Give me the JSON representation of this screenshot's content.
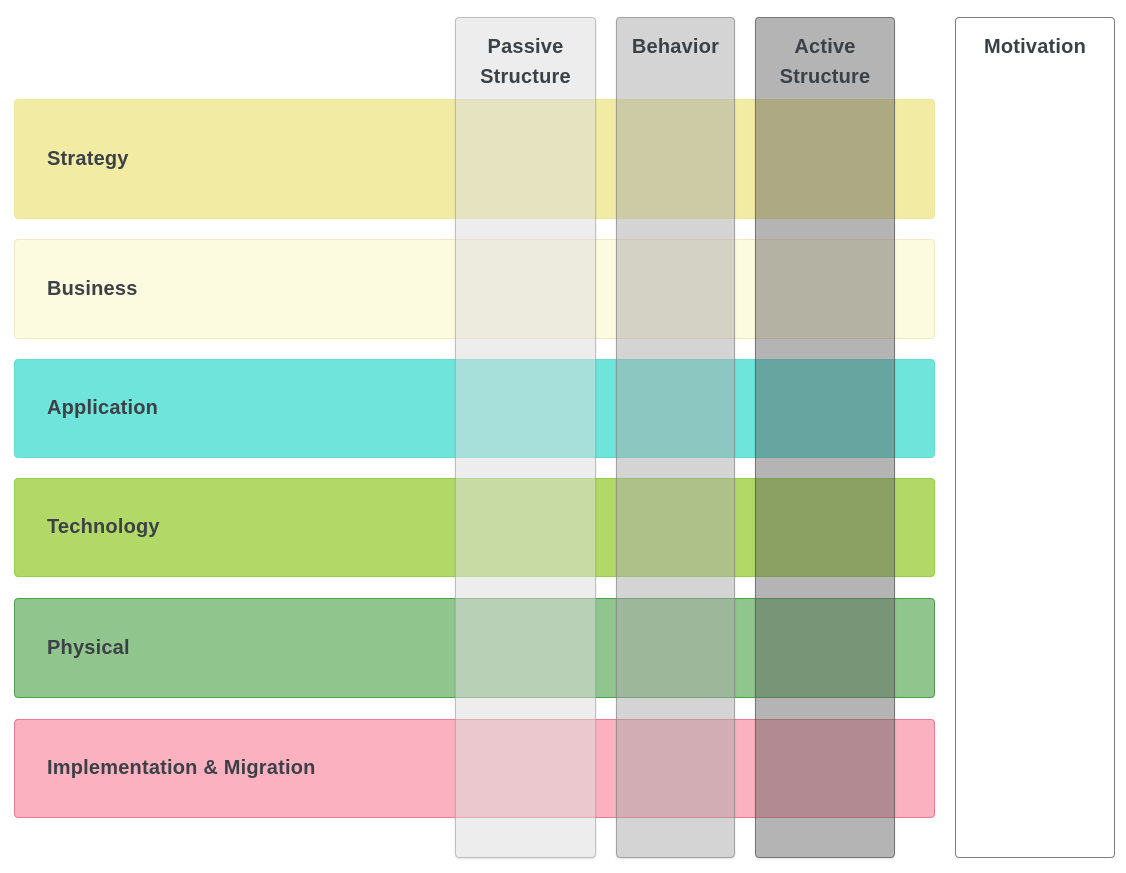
{
  "diagram": {
    "background": "#FFFFFF",
    "text_color": "#3C4047",
    "rows": [
      {
        "id": "strategy",
        "label": "Strategy",
        "fill": "#F1EBA3",
        "border": "#EDE69B"
      },
      {
        "id": "business",
        "label": "Business",
        "fill": "#FDFBDF",
        "border": "#F0E9C4"
      },
      {
        "id": "application",
        "label": "Application",
        "fill": "#6EE4DA",
        "border": "#63DCD2"
      },
      {
        "id": "technology",
        "label": "Technology",
        "fill": "#B2D967",
        "border": "#92D148"
      },
      {
        "id": "physical",
        "label": "Physical",
        "fill": "#90C58D",
        "border": "#4F9D50"
      },
      {
        "id": "implementation",
        "label": "Implementation & Migration",
        "fill": "#FBB1BF",
        "border": "#EC7A93"
      }
    ],
    "columns": [
      {
        "id": "passive-structure",
        "label": "Passive Structure",
        "fill": "rgba(220,220,220,0.52)",
        "border": "rgba(145,145,145,0.50)"
      },
      {
        "id": "behavior",
        "label": "Behavior",
        "fill": "rgba(170,170,170,0.50)",
        "border": "rgba(120,120,120,0.55)"
      },
      {
        "id": "active-structure",
        "label": "Active Structure",
        "fill": "rgba(95,95,95,0.47)",
        "border": "rgba(75,75,75,0.60)"
      },
      {
        "id": "motivation",
        "label": "Motivation",
        "fill": "#FFFFFF",
        "border": "#7E7E7E"
      }
    ]
  }
}
